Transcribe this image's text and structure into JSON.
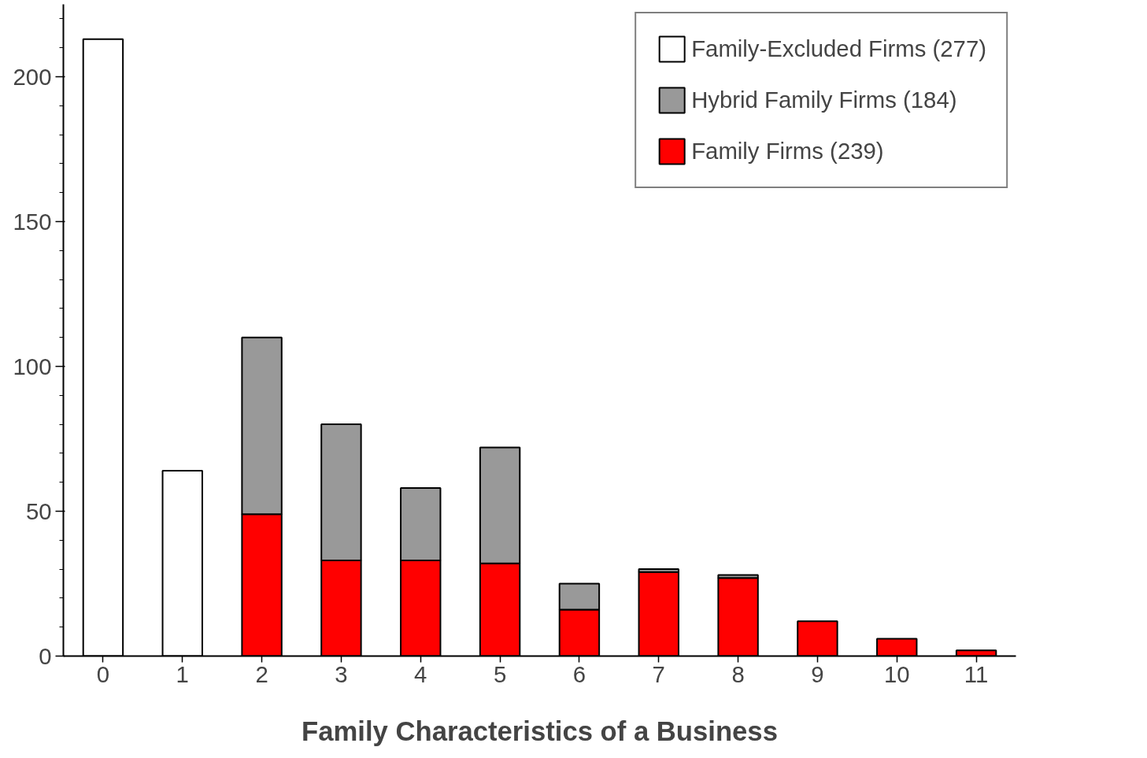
{
  "chart_data": {
    "type": "bar",
    "stacked": true,
    "xlabel": "Family Characteristics of a Business",
    "categories": [
      "0",
      "1",
      "2",
      "3",
      "4",
      "5",
      "6",
      "7",
      "8",
      "9",
      "10",
      "11"
    ],
    "series": [
      {
        "name": "Family Firms (239)",
        "color": "#ff0000",
        "values": [
          null,
          null,
          49,
          33,
          33,
          32,
          16,
          29,
          27,
          12,
          6,
          2
        ]
      },
      {
        "name": "Hybrid Family Firms (184)",
        "color": "#999999",
        "values": [
          null,
          null,
          61,
          47,
          25,
          40,
          9,
          1,
          1,
          null,
          null,
          null
        ]
      },
      {
        "name": "Family-Excluded Firms (277)",
        "color": "#ffffff",
        "values": [
          213,
          64,
          null,
          null,
          null,
          null,
          null,
          null,
          null,
          null,
          null,
          null
        ]
      }
    ],
    "ylim": [
      0,
      225
    ],
    "yticks": [
      0,
      50,
      100,
      150,
      200
    ],
    "grid": false,
    "legend": "top right"
  }
}
